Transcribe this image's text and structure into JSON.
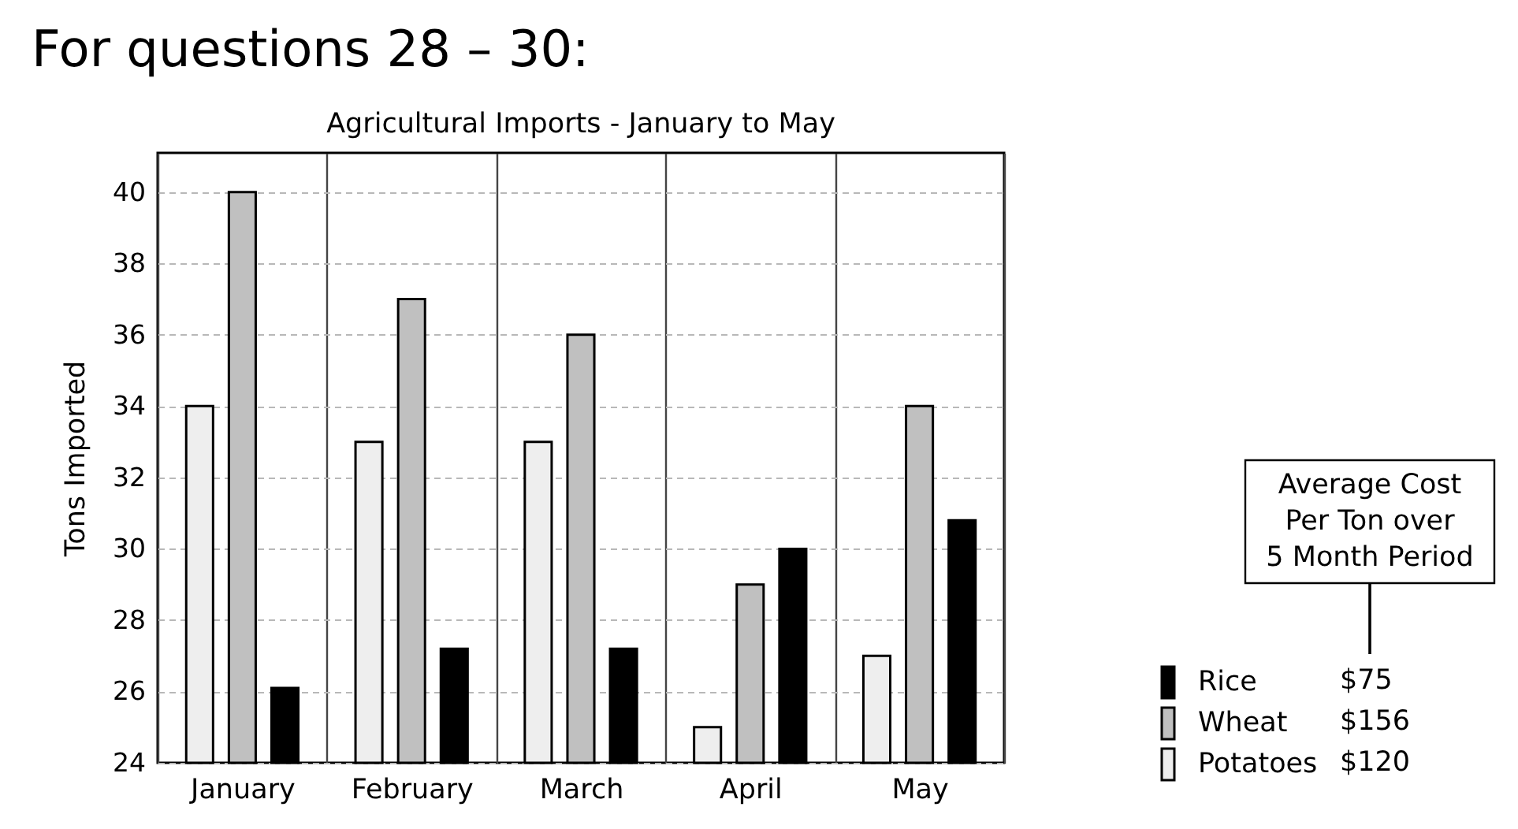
{
  "chart_data": {
    "type": "bar",
    "title": "Agricultural Imports - January to May",
    "ylabel": "Tons Imported",
    "categories": [
      "January",
      "February",
      "March",
      "April",
      "May"
    ],
    "series": [
      {
        "name": "Potatoes",
        "color": "#eeeeee",
        "values": [
          34,
          33,
          33,
          25,
          27
        ]
      },
      {
        "name": "Wheat",
        "color": "#c0c0c0",
        "values": [
          40,
          37,
          36,
          29,
          34
        ]
      },
      {
        "name": "Rice",
        "color": "#000000",
        "values": [
          26.1,
          27.2,
          27.2,
          30,
          30.8
        ]
      }
    ],
    "ylim": [
      24,
      41.1
    ],
    "yticks": [
      24,
      26,
      28,
      30,
      32,
      34,
      36,
      38,
      40
    ],
    "grid": true,
    "legend": "right",
    "annotations": [
      "For questions 28 – 30:",
      "Average Cost Per Ton over 5 Month Period",
      "$120",
      "$156",
      "$75"
    ]
  }
}
